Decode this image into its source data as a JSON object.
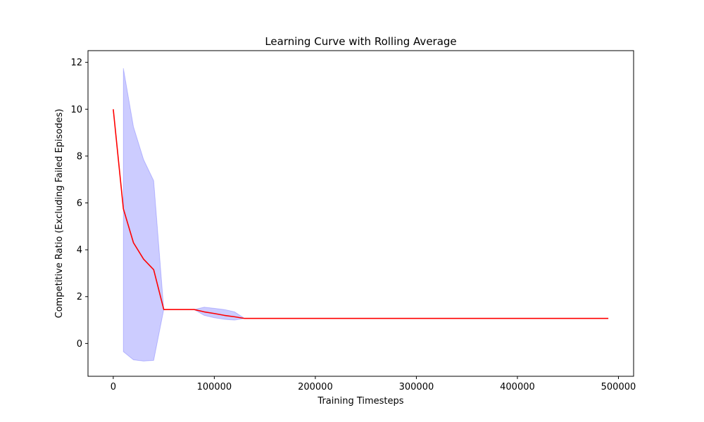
{
  "chart_data": {
    "type": "line",
    "title": "Learning Curve with Rolling Average",
    "xlabel": "Training Timesteps",
    "ylabel": "Competitive Ratio (Excluding Failed Episodes)",
    "xlim": [
      -25000,
      515000
    ],
    "ylim": [
      -1.4,
      12.5
    ],
    "xticks": [
      0,
      100000,
      200000,
      300000,
      400000,
      500000
    ],
    "xtick_labels": [
      "0",
      "100000",
      "200000",
      "300000",
      "400000",
      "500000"
    ],
    "yticks": [
      0,
      2,
      4,
      6,
      8,
      10,
      12
    ],
    "ytick_labels": [
      "0",
      "2",
      "4",
      "6",
      "8",
      "10",
      "12"
    ],
    "grid": false,
    "series": [
      {
        "color": "#ff0000",
        "x": [
          0,
          10000,
          20000,
          30000,
          40000,
          50000,
          60000,
          70000,
          80000,
          90000,
          100000,
          110000,
          120000,
          130000,
          140000,
          150000,
          200000,
          300000,
          400000,
          490000
        ],
        "y": [
          10.0,
          5.75,
          4.3,
          3.6,
          3.15,
          1.45,
          1.45,
          1.45,
          1.45,
          1.35,
          1.28,
          1.2,
          1.14,
          1.07,
          1.07,
          1.07,
          1.07,
          1.07,
          1.07,
          1.07
        ]
      }
    ],
    "band": {
      "color": "#0000ff",
      "opacity": 0.2,
      "x": [
        10000,
        20000,
        30000,
        40000,
        50000,
        60000,
        70000,
        80000,
        90000,
        100000,
        110000,
        120000,
        130000
      ],
      "upper": [
        11.75,
        9.25,
        7.85,
        6.95,
        1.45,
        1.45,
        1.45,
        1.45,
        1.55,
        1.5,
        1.45,
        1.35,
        1.07
      ],
      "lower": [
        -0.35,
        -0.7,
        -0.75,
        -0.72,
        1.45,
        1.45,
        1.45,
        1.45,
        1.2,
        1.1,
        1.03,
        1.0,
        1.07
      ]
    }
  }
}
